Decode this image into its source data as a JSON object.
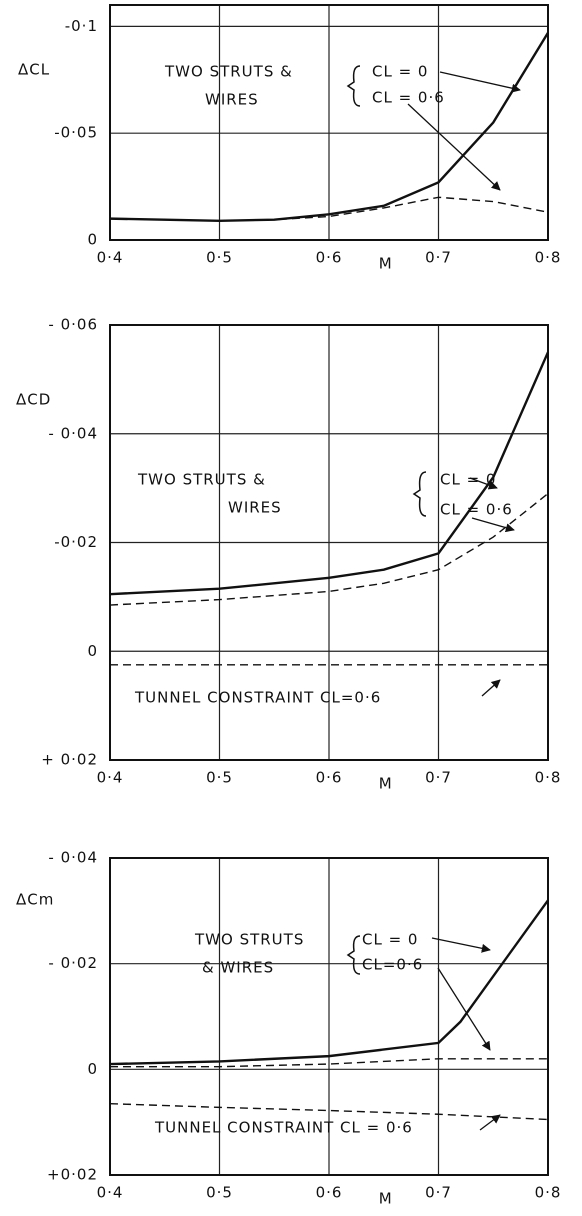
{
  "chart_data": [
    {
      "type": "line",
      "ylabel": "ΔCL",
      "xlabel": "M",
      "x": [
        0.4,
        0.5,
        0.55,
        0.6,
        0.65,
        0.7,
        0.75,
        0.8
      ],
      "series": [
        {
          "name": "CL = 0",
          "color": "#111111",
          "linestyle": "solid",
          "values": [
            -0.01,
            -0.009,
            -0.0095,
            -0.012,
            -0.016,
            -0.027,
            -0.055,
            -0.097
          ]
        },
        {
          "name": "CL = 0·6",
          "color": "#111111",
          "linestyle": "dashed",
          "values": [
            -0.01,
            -0.009,
            -0.0095,
            -0.011,
            -0.015,
            -0.02,
            -0.018,
            -0.013
          ]
        }
      ],
      "annotations": [
        "TWO STRUTS &",
        "WIRES"
      ],
      "xlim": [
        0.4,
        0.8
      ],
      "ylim": [
        0,
        -0.11
      ],
      "xticks": [
        {
          "value": 0.4,
          "label": "0·4"
        },
        {
          "value": 0.5,
          "label": "0·5"
        },
        {
          "value": 0.6,
          "label": "0·6"
        },
        {
          "value": 0.7,
          "label": "0·7"
        },
        {
          "value": 0.8,
          "label": "0·8"
        }
      ],
      "yticks": [
        {
          "value": -0.1,
          "label": "-0·1"
        },
        {
          "value": -0.05,
          "label": "-0·05"
        },
        0
      ],
      "grid": true
    },
    {
      "type": "line",
      "ylabel": "ΔCD",
      "xlabel": "M",
      "x": [
        0.4,
        0.5,
        0.6,
        0.65,
        0.7,
        0.75,
        0.8
      ],
      "series": [
        {
          "name": "CL = 0",
          "color": "#111111",
          "linestyle": "solid",
          "values": [
            -0.0105,
            -0.0115,
            -0.0135,
            -0.015,
            -0.018,
            -0.032,
            -0.055
          ]
        },
        {
          "name": "CL = 0·6",
          "color": "#111111",
          "linestyle": "dashed",
          "values": [
            -0.0085,
            -0.0095,
            -0.011,
            -0.0125,
            -0.015,
            -0.021,
            -0.029
          ]
        },
        {
          "name": "TUNNEL CONSTRAINT CL=0·6",
          "color": "#111111",
          "linestyle": "dashed",
          "values": [
            0.0025,
            0.0025,
            0.0025,
            0.0025,
            0.0025,
            0.0025,
            0.0025
          ]
        }
      ],
      "annotations": [
        "TWO  STRUTS &",
        "WIRES"
      ],
      "xlim": [
        0.4,
        0.8
      ],
      "ylim": [
        0.02,
        -0.06
      ],
      "xticks": [
        {
          "value": 0.4,
          "label": "0·4"
        },
        {
          "value": 0.5,
          "label": "0·5"
        },
        {
          "value": 0.6,
          "label": "0·6"
        },
        {
          "value": 0.7,
          "label": "0·7"
        },
        {
          "value": 0.8,
          "label": "0·8"
        }
      ],
      "yticks": [
        {
          "value": -0.06,
          "label": "- 0·06"
        },
        {
          "value": -0.04,
          "label": "- 0·04"
        },
        {
          "value": -0.02,
          "label": "-0·02"
        },
        0,
        {
          "value": 0.02,
          "label": "+ 0·02"
        }
      ],
      "grid": true
    },
    {
      "type": "line",
      "ylabel": "ΔCm",
      "xlabel": "M",
      "x": [
        0.4,
        0.5,
        0.6,
        0.7,
        0.72,
        0.8
      ],
      "series": [
        {
          "name": "CL = 0",
          "color": "#111111",
          "linestyle": "solid",
          "values": [
            -0.001,
            -0.0015,
            -0.0025,
            -0.005,
            -0.009,
            -0.032
          ]
        },
        {
          "name": "CL=0·6",
          "color": "#111111",
          "linestyle": "dashed",
          "values": [
            -0.0005,
            -0.0005,
            -0.001,
            -0.002,
            -0.002,
            -0.002
          ]
        },
        {
          "name": "TUNNEL CONSTRAINT CL = 0·6",
          "color": "#111111",
          "linestyle": "dashed",
          "values": [
            0.0065,
            0.0072,
            0.0078,
            0.0085,
            0.0087,
            0.0095
          ]
        }
      ],
      "annotations": [
        "TWO STRUTS",
        "& WIRES"
      ],
      "xlim": [
        0.4,
        0.8
      ],
      "ylim": [
        0.02,
        -0.04
      ],
      "xticks": [
        {
          "value": 0.4,
          "label": "0·4"
        },
        {
          "value": 0.5,
          "label": "0·5"
        },
        {
          "value": 0.6,
          "label": "0·6"
        },
        {
          "value": 0.7,
          "label": "0·7"
        },
        {
          "value": 0.8,
          "label": "0·8"
        }
      ],
      "yticks": [
        {
          "value": -0.04,
          "label": "- 0·04"
        },
        {
          "value": -0.02,
          "label": "- 0·02"
        },
        0,
        {
          "value": 0.02,
          "label": "+0·02"
        }
      ],
      "grid": true
    }
  ]
}
